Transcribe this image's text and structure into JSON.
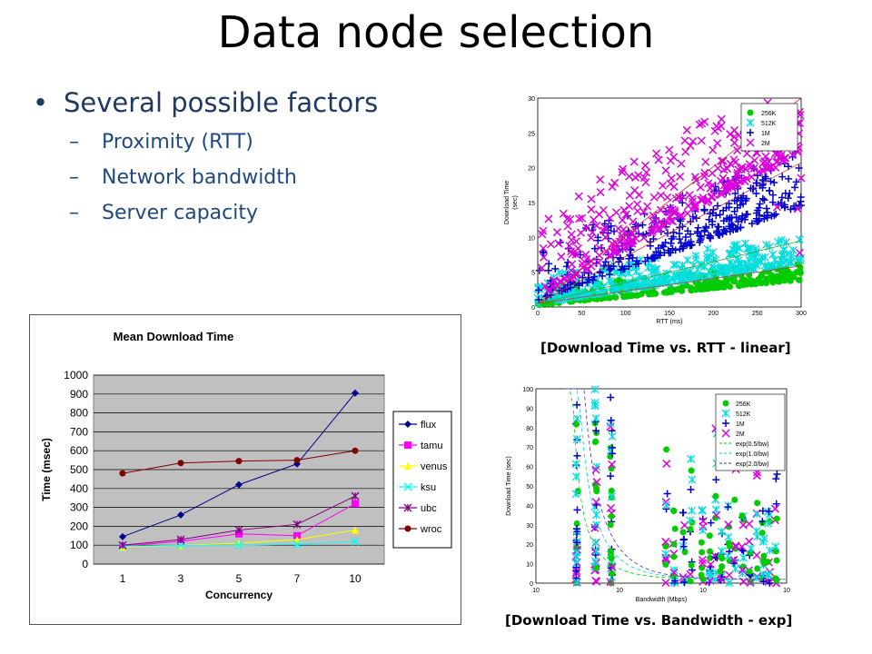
{
  "slide": {
    "title": "Data node selection",
    "bullet": "Several possible factors",
    "subbullets": [
      "Proximity (RTT)",
      "Network bandwidth",
      "Server capacity"
    ],
    "caption_rtt": "[Download Time vs. RTT - linear]",
    "caption_bw": "[Download Time vs. Bandwidth - exp]"
  },
  "chart_data": [
    {
      "type": "line",
      "title": "Mean Download Time",
      "xlabel": "Concurrency",
      "ylabel": "Time (msec)",
      "categories": [
        "1",
        "3",
        "5",
        "7",
        "10"
      ],
      "ylim": [
        0,
        1000
      ],
      "yticks": [
        0,
        100,
        200,
        300,
        400,
        500,
        600,
        700,
        800,
        900,
        1000
      ],
      "grid": true,
      "legend": "right",
      "series": [
        {
          "name": "flux",
          "values": [
            145,
            260,
            420,
            530,
            905
          ],
          "color": "#00008b",
          "marker": "diamond"
        },
        {
          "name": "tamu",
          "values": [
            95,
            120,
            160,
            150,
            320
          ],
          "color": "#ff00ff",
          "marker": "square"
        },
        {
          "name": "venus",
          "values": [
            90,
            100,
            110,
            130,
            180
          ],
          "color": "#ffff00",
          "marker": "triangle"
        },
        {
          "name": "ksu",
          "values": [
            95,
            100,
            100,
            105,
            120
          ],
          "color": "#00ffff",
          "marker": "x"
        },
        {
          "name": "ubc",
          "values": [
            100,
            130,
            180,
            210,
            360
          ],
          "color": "#800080",
          "marker": "star"
        },
        {
          "name": "wroc",
          "values": [
            480,
            535,
            545,
            550,
            600
          ],
          "color": "#800000",
          "marker": "circle"
        }
      ]
    },
    {
      "type": "scatter",
      "title": "",
      "xlabel": "RTT (ms)",
      "ylabel": "Download Time\n(sec)",
      "xlim": [
        0,
        300
      ],
      "ylim": [
        0,
        30
      ],
      "xticks": [
        0,
        50,
        100,
        150,
        200,
        250,
        300
      ],
      "yticks": [
        0,
        5,
        10,
        15,
        20,
        25,
        30
      ],
      "legend": "top-right",
      "series": [
        {
          "name": "256K",
          "color": "#00cc00",
          "marker": "circle"
        },
        {
          "name": "512K",
          "color": "#00dddd",
          "marker": "star"
        },
        {
          "name": "1M",
          "color": "#0000cc",
          "marker": "plus"
        },
        {
          "name": "2M",
          "color": "#dd00dd",
          "marker": "x"
        }
      ]
    },
    {
      "type": "scatter",
      "title": "",
      "xlabel": "Bandwidth (Mbps)",
      "ylabel": "Download Time (sec)",
      "xscale": "log",
      "xlim": [
        0.1,
        1000
      ],
      "ylim": [
        0,
        100
      ],
      "xtick_labels": [
        "10",
        "10",
        "10",
        "10"
      ],
      "yticks": [
        0,
        10,
        20,
        30,
        40,
        50,
        60,
        70,
        80,
        90,
        100
      ],
      "legend": "top-right",
      "series": [
        {
          "name": "256K",
          "color": "#00cc00",
          "marker": "circle"
        },
        {
          "name": "512K",
          "color": "#00dddd",
          "marker": "star"
        },
        {
          "name": "1M",
          "color": "#0000cc",
          "marker": "plus"
        },
        {
          "name": "2M",
          "color": "#dd00dd",
          "marker": "x"
        },
        {
          "name": "exp(0.5/bw)",
          "color": "#00cc00",
          "marker": "dashed-line"
        },
        {
          "name": "exp(1.0/bw)",
          "color": "#00cccc",
          "marker": "dashed-line"
        },
        {
          "name": "exp(2.0/bw)",
          "color": "#3333cc",
          "marker": "dashed-line"
        }
      ]
    }
  ]
}
